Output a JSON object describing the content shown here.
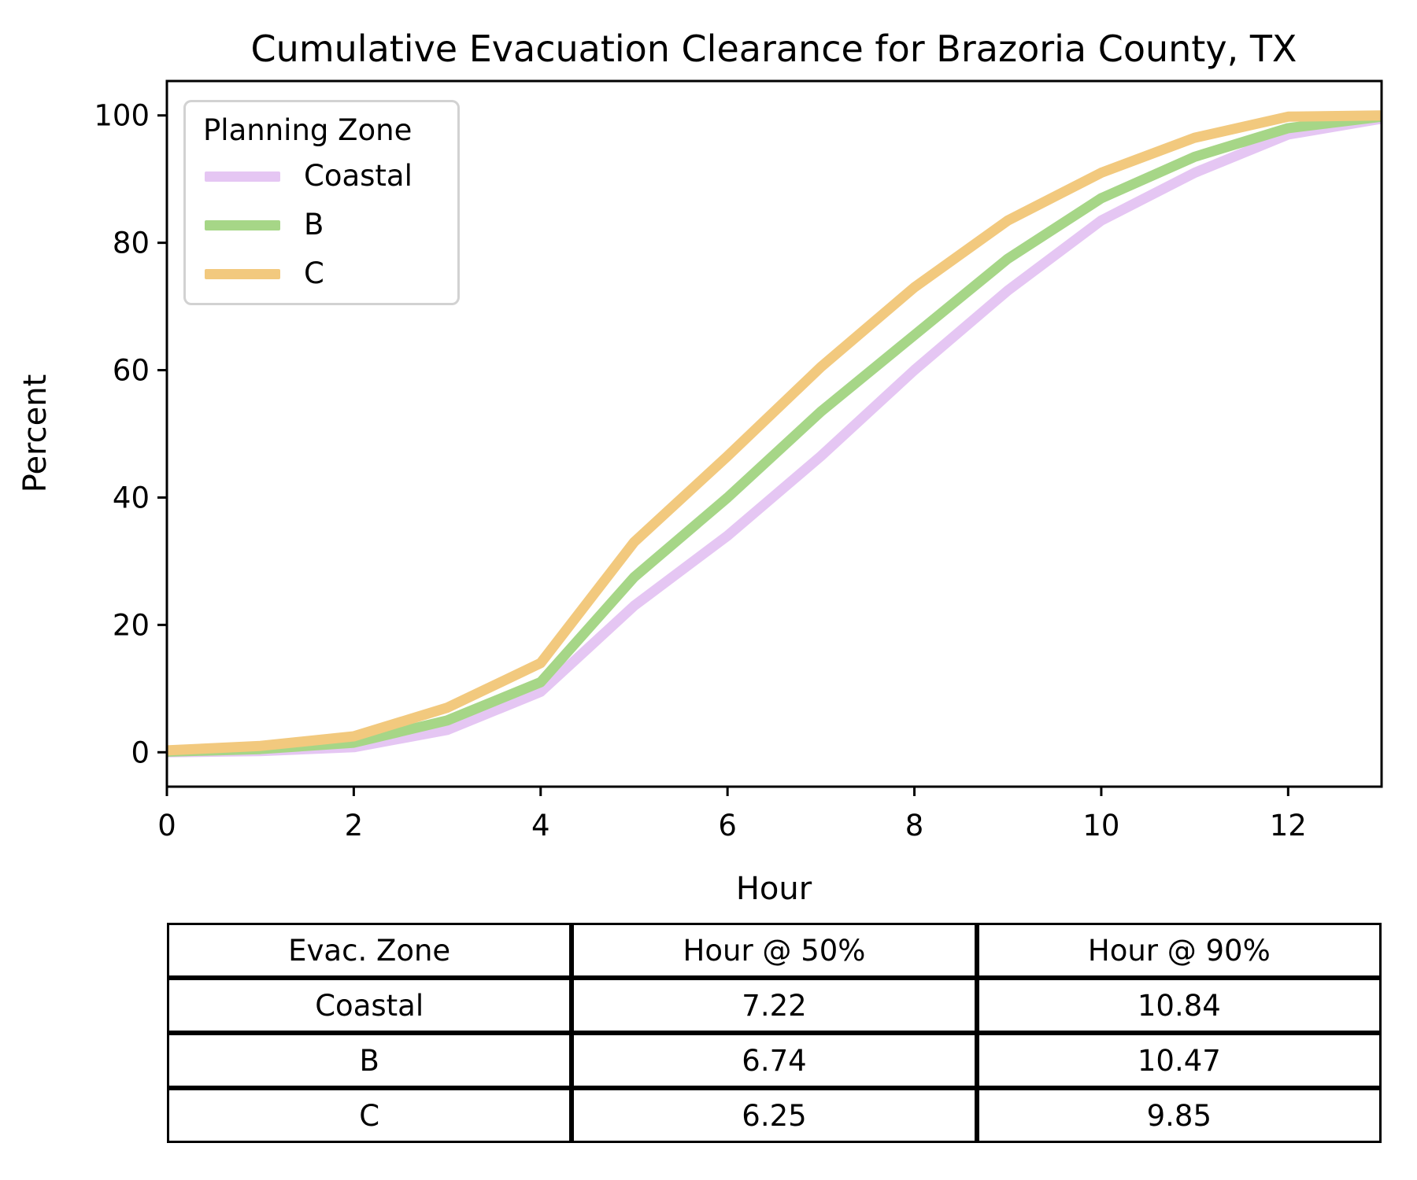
{
  "chart_data": {
    "type": "line",
    "title": "Cumulative Evacuation Clearance for Brazoria County, TX",
    "xlabel": "Hour",
    "ylabel": "Percent",
    "x": [
      0,
      1,
      2,
      3,
      4,
      5,
      6,
      7,
      8,
      9,
      10,
      11,
      12,
      13
    ],
    "xlim": [
      0,
      13
    ],
    "ylim": [
      -5.4,
      105.4
    ],
    "xticks": [
      0,
      2,
      4,
      6,
      8,
      10,
      12
    ],
    "yticks": [
      0,
      20,
      40,
      60,
      80,
      100
    ],
    "grid": false,
    "legend": {
      "title": "Planning Zone",
      "position": "upper-left"
    },
    "series": [
      {
        "name": "Coastal",
        "color": "#e5c6f3",
        "values": [
          0,
          0.2,
          0.8,
          3.5,
          9.5,
          23,
          34,
          46.5,
          60,
          72.5,
          83.5,
          91,
          97,
          99.5
        ]
      },
      {
        "name": "B",
        "color": "#a6d687",
        "values": [
          0.1,
          0.5,
          1.5,
          5,
          11,
          27.5,
          40,
          53.5,
          65.5,
          77.5,
          87,
          93.5,
          98,
          99.8
        ]
      },
      {
        "name": "C",
        "color": "#f2c97e",
        "values": [
          0.3,
          1,
          2.5,
          7,
          14,
          33,
          46.5,
          60.5,
          73,
          83.5,
          91,
          96.5,
          99.8,
          100
        ]
      }
    ]
  },
  "table": {
    "headers": [
      "Evac. Zone",
      "Hour @ 50%",
      "Hour @ 90%"
    ],
    "rows": [
      [
        "Coastal",
        "7.22",
        "10.84"
      ],
      [
        "B",
        "6.74",
        "10.47"
      ],
      [
        "C",
        "6.25",
        "9.85"
      ]
    ]
  },
  "style": {
    "axis_color": "#000000",
    "legend_border_color": "#d2d2d2",
    "line_width": 13
  }
}
